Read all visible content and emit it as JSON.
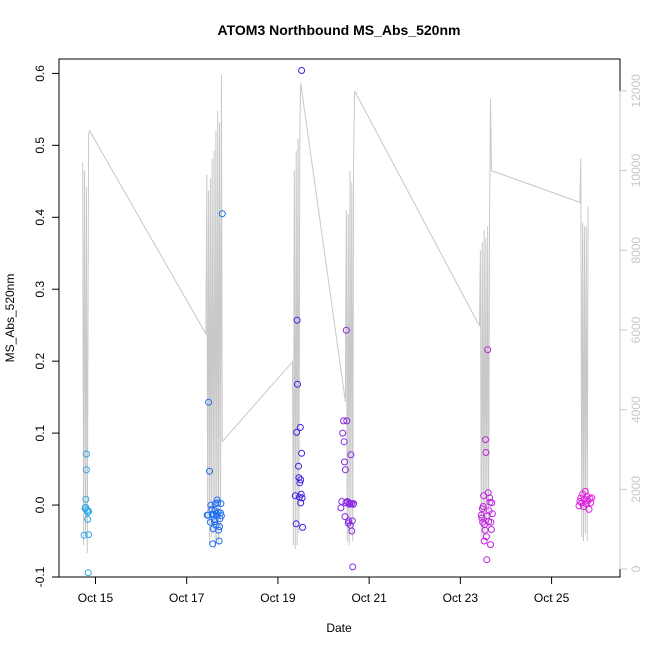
{
  "chart_data": {
    "type": "scatter",
    "title": "ATOM3 Northbound MS_Abs_520nm",
    "xlabel": "Date",
    "ylabel": "MS_Abs_520nm",
    "x_unit": "days (October)",
    "xlim": [
      14.2,
      26.5
    ],
    "ylim": [
      -0.1,
      0.62
    ],
    "x_ticks": [
      {
        "value": 15,
        "label": "Oct 15"
      },
      {
        "value": 17,
        "label": "Oct 17"
      },
      {
        "value": 19,
        "label": "Oct 19"
      },
      {
        "value": 21,
        "label": "Oct 21"
      },
      {
        "value": 23,
        "label": "Oct 23"
      },
      {
        "value": 25,
        "label": "Oct 25"
      }
    ],
    "y_ticks": [
      "-0.1",
      "0.0",
      "0.1",
      "0.2",
      "0.3",
      "0.4",
      "0.5",
      "0.6"
    ],
    "y2_ticks": [
      "0",
      "2000",
      "4000",
      "6000",
      "8000",
      "10000",
      "12000"
    ],
    "y2lim": [
      -200,
      12800
    ],
    "grid": false,
    "legend": "none",
    "secondary_series": {
      "color": "#c8c8c8",
      "points": [
        [
          14.72,
          10200
        ],
        [
          14.74,
          600
        ],
        [
          14.76,
          10000
        ],
        [
          14.78,
          900
        ],
        [
          14.8,
          9600
        ],
        [
          14.82,
          400
        ],
        [
          14.85,
          10900
        ],
        [
          14.87,
          11000
        ],
        [
          17.42,
          5900
        ],
        [
          17.44,
          9900
        ],
        [
          17.46,
          1200
        ],
        [
          17.48,
          9500
        ],
        [
          17.5,
          600
        ],
        [
          17.52,
          9800
        ],
        [
          17.54,
          800
        ],
        [
          17.56,
          10300
        ],
        [
          17.58,
          900
        ],
        [
          17.6,
          10500
        ],
        [
          17.62,
          500
        ],
        [
          17.64,
          11000
        ],
        [
          17.66,
          700
        ],
        [
          17.68,
          11500
        ],
        [
          17.7,
          600
        ],
        [
          17.72,
          11200
        ],
        [
          17.74,
          1000
        ],
        [
          17.76,
          12400
        ],
        [
          17.78,
          3200
        ],
        [
          19.32,
          5200
        ],
        [
          19.34,
          600
        ],
        [
          19.36,
          10000
        ],
        [
          19.38,
          500
        ],
        [
          19.4,
          10500
        ],
        [
          19.42,
          600
        ],
        [
          19.44,
          10800
        ],
        [
          19.46,
          900
        ],
        [
          19.48,
          11000
        ],
        [
          19.5,
          12200
        ],
        [
          20.48,
          4200
        ],
        [
          20.5,
          9000
        ],
        [
          20.52,
          700
        ],
        [
          20.54,
          8900
        ],
        [
          20.56,
          600
        ],
        [
          20.58,
          10000
        ],
        [
          20.6,
          900
        ],
        [
          20.62,
          9700
        ],
        [
          20.64,
          700
        ],
        [
          20.66,
          10300
        ],
        [
          20.68,
          12000
        ],
        [
          23.42,
          6100
        ],
        [
          23.44,
          8000
        ],
        [
          23.46,
          800
        ],
        [
          23.48,
          8200
        ],
        [
          23.5,
          700
        ],
        [
          23.52,
          8500
        ],
        [
          23.54,
          900
        ],
        [
          23.56,
          8300
        ],
        [
          23.58,
          1200
        ],
        [
          23.6,
          8600
        ],
        [
          23.62,
          1000
        ],
        [
          23.64,
          9000
        ],
        [
          23.66,
          11800
        ],
        [
          23.68,
          10000
        ],
        [
          25.62,
          9200
        ],
        [
          25.64,
          10300
        ],
        [
          25.66,
          800
        ],
        [
          25.68,
          8700
        ],
        [
          25.7,
          700
        ],
        [
          25.72,
          8600
        ],
        [
          25.74,
          900
        ],
        [
          25.76,
          8600
        ],
        [
          25.78,
          700
        ],
        [
          25.8,
          9100
        ]
      ]
    },
    "series": [
      {
        "color": "#29a8e8",
        "points": [
          [
            14.75,
            -0.042
          ],
          [
            14.77,
            -0.005
          ],
          [
            14.78,
            -0.003
          ],
          [
            14.79,
            0.008
          ],
          [
            14.8,
            0.071
          ],
          [
            14.8,
            0.049
          ],
          [
            14.82,
            -0.007
          ],
          [
            14.83,
            -0.01
          ],
          [
            14.83,
            -0.02
          ],
          [
            14.85,
            -0.009
          ],
          [
            14.85,
            -0.041
          ],
          [
            14.84,
            -0.094
          ]
        ]
      },
      {
        "color": "#1e6ef0",
        "points": [
          [
            17.45,
            -0.014
          ],
          [
            17.47,
            -0.014
          ],
          [
            17.48,
            0.143
          ],
          [
            17.5,
            0.047
          ],
          [
            17.52,
            -0.024
          ],
          [
            17.53,
            0.0
          ],
          [
            17.55,
            -0.006
          ],
          [
            17.56,
            -0.013
          ],
          [
            17.57,
            -0.054
          ],
          [
            17.58,
            -0.033
          ],
          [
            17.59,
            -0.013
          ],
          [
            17.6,
            -0.02
          ],
          [
            17.61,
            -0.023
          ],
          [
            17.62,
            -0.008
          ],
          [
            17.63,
            0.002
          ],
          [
            17.64,
            -0.028
          ],
          [
            17.65,
            -0.012
          ],
          [
            17.66,
            -0.015
          ],
          [
            17.67,
            0.007
          ],
          [
            17.68,
            0.003
          ],
          [
            17.69,
            -0.01
          ],
          [
            17.7,
            -0.035
          ],
          [
            17.71,
            -0.05
          ],
          [
            17.72,
            -0.03
          ],
          [
            17.73,
            -0.019
          ],
          [
            17.74,
            -0.011
          ],
          [
            17.75,
            0.002
          ],
          [
            17.76,
            -0.015
          ],
          [
            17.78,
            0.405
          ]
        ]
      },
      {
        "color": "#3a20e6",
        "points": [
          [
            19.38,
            0.013
          ],
          [
            19.4,
            -0.026
          ],
          [
            19.41,
            0.101
          ],
          [
            19.42,
            0.257
          ],
          [
            19.43,
            0.168
          ],
          [
            19.45,
            0.054
          ],
          [
            19.46,
            0.038
          ],
          [
            19.47,
            0.011
          ],
          [
            19.48,
            0.031
          ],
          [
            19.49,
            0.108
          ],
          [
            19.5,
            0.035
          ],
          [
            19.51,
            0.015
          ],
          [
            19.52,
            0.072
          ],
          [
            19.53,
            0.01
          ],
          [
            19.54,
            -0.031
          ],
          [
            19.52,
            0.604
          ],
          [
            19.5,
            0.003
          ]
        ]
      },
      {
        "color": "#8a2be2",
        "points": [
          [
            20.38,
            -0.004
          ],
          [
            20.4,
            0.005
          ],
          [
            20.42,
            0.1
          ],
          [
            20.44,
            0.117
          ],
          [
            20.45,
            0.088
          ],
          [
            20.46,
            0.06
          ],
          [
            20.47,
            -0.016
          ],
          [
            20.48,
            0.049
          ],
          [
            20.49,
            0.003
          ],
          [
            20.5,
            0.243
          ],
          [
            20.51,
            0.117
          ],
          [
            20.52,
            0.005
          ],
          [
            20.53,
            0.004
          ],
          [
            20.54,
            -0.025
          ],
          [
            20.55,
            -0.022
          ],
          [
            20.56,
            0.001
          ],
          [
            20.57,
            0.003
          ],
          [
            20.58,
            0.002
          ],
          [
            20.59,
            -0.028
          ],
          [
            20.6,
            0.07
          ],
          [
            20.61,
            0.002
          ],
          [
            20.62,
            -0.036
          ],
          [
            20.63,
            -0.022
          ],
          [
            20.64,
            -0.086
          ],
          [
            20.65,
            0.001
          ],
          [
            20.66,
            0.002
          ]
        ]
      },
      {
        "color": "#c020e0",
        "points": [
          [
            23.46,
            -0.014
          ],
          [
            23.47,
            -0.018
          ],
          [
            23.48,
            -0.005
          ],
          [
            23.49,
            -0.024
          ],
          [
            23.5,
            -0.002
          ],
          [
            23.51,
            0.013
          ],
          [
            23.52,
            -0.05
          ],
          [
            23.53,
            -0.027
          ],
          [
            23.54,
            -0.035
          ],
          [
            23.55,
            0.091
          ],
          [
            23.56,
            0.073
          ],
          [
            23.57,
            -0.044
          ],
          [
            23.58,
            -0.076
          ],
          [
            23.59,
            -0.015
          ],
          [
            23.6,
            0.216
          ],
          [
            23.61,
            0.017
          ],
          [
            23.62,
            -0.023
          ],
          [
            23.63,
            -0.008
          ],
          [
            23.64,
            0.01
          ],
          [
            23.65,
            0.004
          ],
          [
            23.66,
            -0.055
          ],
          [
            23.67,
            -0.024
          ],
          [
            23.68,
            -0.034
          ],
          [
            23.69,
            0.003
          ],
          [
            23.7,
            -0.012
          ]
        ]
      },
      {
        "color": "#e020e0",
        "points": [
          [
            25.6,
            -0.001
          ],
          [
            25.62,
            0.005
          ],
          [
            25.64,
            0.01
          ],
          [
            25.66,
            0.003
          ],
          [
            25.68,
            0.015
          ],
          [
            25.7,
            -0.002
          ],
          [
            25.72,
            0.008
          ],
          [
            25.74,
            0.019
          ],
          [
            25.76,
            0.002
          ],
          [
            25.78,
            0.012
          ],
          [
            25.8,
            0.006
          ],
          [
            25.82,
            -0.006
          ],
          [
            25.84,
            0.009
          ],
          [
            25.86,
            0.003
          ],
          [
            25.88,
            0.01
          ]
        ]
      }
    ]
  }
}
